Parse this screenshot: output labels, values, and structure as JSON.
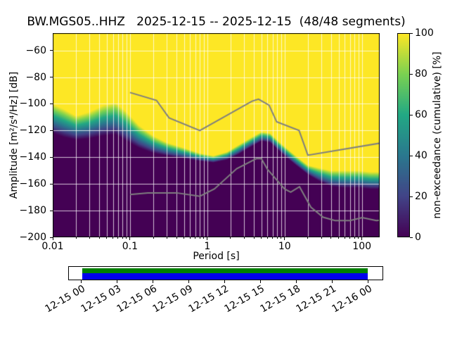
{
  "chart_data": {
    "type": "heatmap",
    "title": "BW.MGS05..HHZ   2025-12-15 -- 2025-12-15  (48/48 segments)",
    "xlabel": "Period [s]",
    "ylabel": "Amplitude [m²/s⁴/Hz] [dB]",
    "colorbar_label": "non-exceedance (cumulative) [%]",
    "x_scale": "log",
    "xlim": [
      0.01,
      170
    ],
    "ylim": [
      -200,
      -47
    ],
    "grid": true,
    "x_ticks": [
      {
        "v": 0.01,
        "label": "0.01"
      },
      {
        "v": 0.1,
        "label": "0.1"
      },
      {
        "v": 1,
        "label": "1"
      },
      {
        "v": 10,
        "label": "10"
      },
      {
        "v": 100,
        "label": "100"
      }
    ],
    "y_ticks": [
      {
        "v": -60,
        "label": "−60"
      },
      {
        "v": -80,
        "label": "−80"
      },
      {
        "v": -100,
        "label": "−100"
      },
      {
        "v": -120,
        "label": "−120"
      },
      {
        "v": -140,
        "label": "−140"
      },
      {
        "v": -160,
        "label": "−160"
      },
      {
        "v": -180,
        "label": "−180"
      },
      {
        "v": -200,
        "label": "−200"
      }
    ],
    "colorbar_ticks": [
      {
        "v": 0,
        "label": "0"
      },
      {
        "v": 20,
        "label": "20"
      },
      {
        "v": 40,
        "label": "40"
      },
      {
        "v": 60,
        "label": "60"
      },
      {
        "v": 80,
        "label": "80"
      },
      {
        "v": 100,
        "label": "100"
      }
    ],
    "colormap": {
      "name": "viridis",
      "stops": [
        "#440154",
        "#414487",
        "#2a788e",
        "#22a884",
        "#7ad151",
        "#fde725"
      ]
    },
    "colors": {
      "grid": "#ffffff",
      "noise_model_line": "#7f7f7f",
      "low": "#440154",
      "high": "#fde725"
    },
    "distribution_band": [
      [
        0.01,
        -100,
        -122
      ],
      [
        0.014,
        -104,
        -125
      ],
      [
        0.02,
        -109,
        -127
      ],
      [
        0.03,
        -106,
        -126
      ],
      [
        0.045,
        -101,
        -124
      ],
      [
        0.065,
        -99,
        -123
      ],
      [
        0.09,
        -106,
        -128
      ],
      [
        0.13,
        -116,
        -133
      ],
      [
        0.2,
        -124,
        -137
      ],
      [
        0.3,
        -129,
        -139
      ],
      [
        0.5,
        -133,
        -141
      ],
      [
        0.8,
        -137,
        -143
      ],
      [
        1.2,
        -139,
        -144
      ],
      [
        1.8,
        -136,
        -142
      ],
      [
        2.5,
        -131,
        -138
      ],
      [
        3.5,
        -126,
        -133
      ],
      [
        5.0,
        -121,
        -128
      ],
      [
        6.5,
        -122,
        -129
      ],
      [
        8.0,
        -127,
        -134
      ],
      [
        10.0,
        -132,
        -139
      ],
      [
        14.0,
        -139,
        -146
      ],
      [
        20.0,
        -146,
        -153
      ],
      [
        28.0,
        -148,
        -158
      ],
      [
        40.0,
        -150,
        -162
      ],
      [
        60.0,
        -150,
        -163
      ],
      [
        90.0,
        -150,
        -163
      ],
      [
        130.0,
        -151,
        -164
      ],
      [
        170.0,
        -151,
        -164
      ]
    ],
    "noise_models": {
      "nhnm": [
        [
          0.1,
          -91.5
        ],
        [
          0.22,
          -97.4
        ],
        [
          0.32,
          -110.5
        ],
        [
          0.8,
          -120.0
        ],
        [
          3.8,
          -98.0
        ],
        [
          4.6,
          -96.5
        ],
        [
          6.3,
          -101.0
        ],
        [
          7.9,
          -113.5
        ],
        [
          15.4,
          -120.0
        ],
        [
          20.0,
          -138.5
        ],
        [
          354.8,
          -126.4
        ]
      ],
      "nlnm": [
        [
          0.1,
          -168.0
        ],
        [
          0.17,
          -166.7
        ],
        [
          0.4,
          -166.7
        ],
        [
          0.8,
          -169.2
        ],
        [
          1.24,
          -163.7
        ],
        [
          2.4,
          -148.6
        ],
        [
          4.3,
          -141.1
        ],
        [
          5.0,
          -141.1
        ],
        [
          6.0,
          -149.0
        ],
        [
          10.0,
          -163.8
        ],
        [
          12.0,
          -166.2
        ],
        [
          15.6,
          -162.1
        ],
        [
          21.9,
          -177.5
        ],
        [
          31.6,
          -185.0
        ],
        [
          45.0,
          -187.5
        ],
        [
          70.0,
          -187.5
        ],
        [
          101.0,
          -185.3
        ],
        [
          154.0,
          -187.5
        ],
        [
          328.0,
          -185.3
        ]
      ]
    }
  },
  "timeline": {
    "labels": [
      "12-15 00",
      "12-15 03",
      "12-15 06",
      "12-15 09",
      "12-15 12",
      "12-15 15",
      "12-15 18",
      "12-15 21",
      "12-16 00"
    ],
    "coverage_color": "#008000",
    "processed_color": "#0000ee",
    "fill_left_frac": 0.042,
    "fill_width_frac": 0.911
  }
}
